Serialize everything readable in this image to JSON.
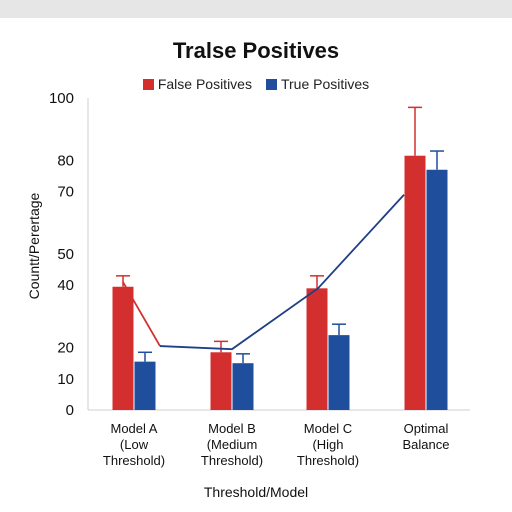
{
  "chart_data": {
    "type": "bar",
    "title": "Tralse Positives",
    "xlabel": "Threshold/Model",
    "ylabel": "Countt/Perertage",
    "ylim": [
      0,
      100
    ],
    "y_ticks": [
      "0",
      "10",
      "20",
      "40",
      "50",
      "70",
      "80",
      "100"
    ],
    "categories": [
      [
        "Model A",
        "(Low",
        "Threshold)"
      ],
      [
        "Model B",
        "(Medium",
        "Threshold)"
      ],
      [
        "Model C",
        "(High",
        "Threshold)"
      ],
      [
        "Optimal",
        "Balance"
      ]
    ],
    "series": [
      {
        "name": "False Positives",
        "color": "#d32f2f",
        "values": [
          39.5,
          18.5,
          39,
          81.5
        ],
        "error_upper": [
          43,
          22,
          43,
          97
        ]
      },
      {
        "name": "True Positives",
        "color": "#1f4e9c",
        "values": [
          15.5,
          15,
          24,
          77
        ],
        "error_upper": [
          18.5,
          18,
          27.5,
          83
        ]
      }
    ],
    "trend_line": {
      "color": "#1f3f86",
      "values": [
        20.5,
        19.5,
        39,
        69
      ]
    },
    "red_connector": {
      "values": [
        41,
        20.5
      ]
    },
    "grid": false,
    "legend_position": "top-center"
  }
}
